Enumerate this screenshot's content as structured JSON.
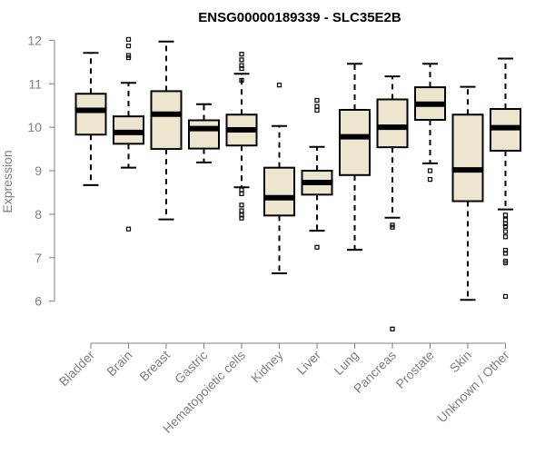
{
  "chart_data": {
    "type": "box",
    "title": "ENSG00000189339 - SLC35E2B",
    "xlabel": "",
    "ylabel": "Expression",
    "ylim": [
      5.2,
      12.3
    ],
    "yticks": [
      6,
      7,
      8,
      9,
      10,
      11,
      12
    ],
    "colors": {
      "box_fill": "#ede6cf",
      "box_stroke": "#000000",
      "axis": "#808080",
      "title": "#000000"
    },
    "categories": [
      "Bladder",
      "Brain",
      "Breast",
      "Gastric",
      "Hematopoietic cells",
      "Kidney",
      "Liver",
      "Lung",
      "Pancreas",
      "Prostate",
      "Skin",
      "Unknown / Other"
    ],
    "boxes": [
      {
        "category": "Bladder",
        "whisker_low": 8.67,
        "q1": 9.83,
        "median": 10.39,
        "q3": 10.77,
        "whisker_high": 11.71,
        "outliers": []
      },
      {
        "category": "Brain",
        "whisker_low": 9.07,
        "q1": 9.62,
        "median": 9.88,
        "q3": 10.25,
        "whisker_high": 11.02,
        "outliers": [
          12.02,
          11.87,
          11.65,
          11.6,
          7.66
        ]
      },
      {
        "category": "Breast",
        "whisker_low": 7.88,
        "q1": 9.5,
        "median": 10.3,
        "q3": 10.83,
        "whisker_high": 11.97,
        "outliers": []
      },
      {
        "category": "Gastric",
        "whisker_low": 9.19,
        "q1": 9.51,
        "median": 9.97,
        "q3": 10.16,
        "whisker_high": 10.53,
        "outliers": []
      },
      {
        "category": "Hematopoietic cells",
        "whisker_low": 8.62,
        "q1": 9.58,
        "median": 9.94,
        "q3": 10.29,
        "whisker_high": 11.23,
        "outliers": [
          11.68,
          11.55,
          11.42,
          11.35,
          11.08,
          8.56,
          8.47,
          8.21,
          8.08,
          7.98,
          7.91
        ]
      },
      {
        "category": "Kidney",
        "whisker_low": 6.64,
        "q1": 7.97,
        "median": 8.38,
        "q3": 9.07,
        "whisker_high": 10.03,
        "outliers": [
          10.97
        ]
      },
      {
        "category": "Liver",
        "whisker_low": 7.62,
        "q1": 8.45,
        "median": 8.73,
        "q3": 9.0,
        "whisker_high": 9.55,
        "outliers": [
          10.62,
          10.48,
          10.39,
          7.24
        ]
      },
      {
        "category": "Lung",
        "whisker_low": 7.18,
        "q1": 8.9,
        "median": 9.78,
        "q3": 10.4,
        "whisker_high": 11.46,
        "outliers": []
      },
      {
        "category": "Pancreas",
        "whisker_low": 7.92,
        "q1": 9.54,
        "median": 10.0,
        "q3": 10.64,
        "whisker_high": 11.17,
        "outliers": [
          7.75,
          7.7,
          5.36
        ]
      },
      {
        "category": "Prostate",
        "whisker_low": 9.17,
        "q1": 10.17,
        "median": 10.53,
        "q3": 10.92,
        "whisker_high": 11.46,
        "outliers": [
          9.0,
          8.8
        ]
      },
      {
        "category": "Skin",
        "whisker_low": 6.03,
        "q1": 8.3,
        "median": 9.02,
        "q3": 10.29,
        "whisker_high": 10.93,
        "outliers": []
      },
      {
        "category": "Unknown / Other",
        "whisker_low": 8.11,
        "q1": 9.46,
        "median": 9.99,
        "q3": 10.42,
        "whisker_high": 11.58,
        "outliers": [
          7.98,
          7.87,
          7.78,
          7.72,
          7.6,
          7.48,
          7.17,
          7.1,
          6.92,
          6.88,
          6.11
        ]
      }
    ]
  }
}
